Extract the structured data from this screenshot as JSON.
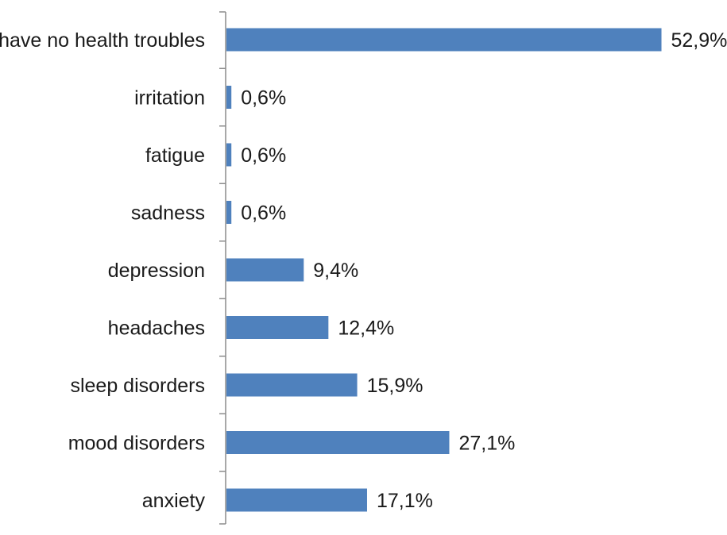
{
  "chart_data": {
    "type": "bar",
    "orientation": "horizontal",
    "categories": [
      "I have no health troubles",
      "irritation",
      "fatigue",
      "sadness",
      "depression",
      "headaches",
      "sleep disorders",
      "mood disorders",
      "anxiety"
    ],
    "values": [
      52.9,
      0.6,
      0.6,
      0.6,
      9.4,
      12.4,
      15.9,
      27.1,
      17.1
    ],
    "value_labels": [
      "52,9%",
      "0,6%",
      "0,6%",
      "0,6%",
      "9,4%",
      "12,4%",
      "15,9%",
      "27,1%",
      "17,1%"
    ],
    "bar_color": "#4f81bd",
    "xlim": [
      0,
      55
    ],
    "grid": false,
    "legend": "none",
    "title": "",
    "xlabel": "",
    "ylabel": ""
  }
}
